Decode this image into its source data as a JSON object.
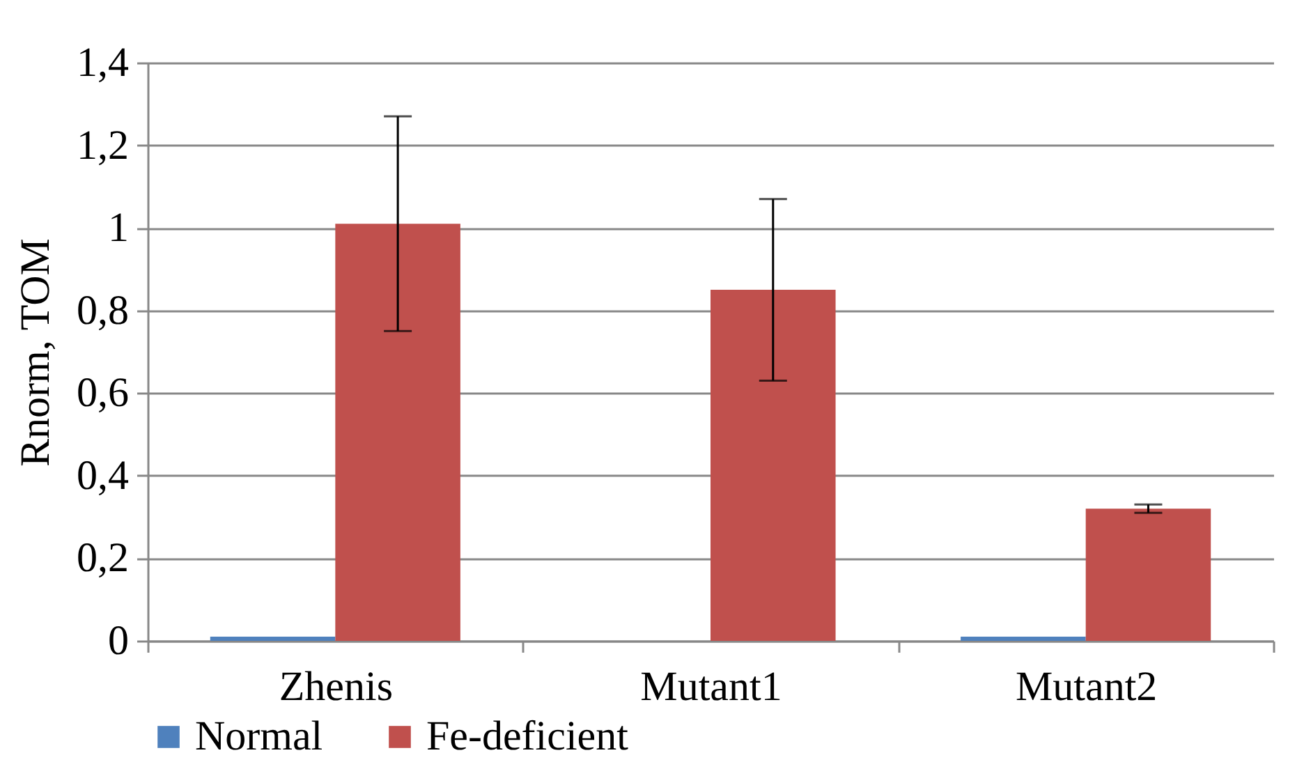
{
  "chart_data": {
    "type": "bar",
    "ylabel": "Rnorm, TOM",
    "categories": [
      "Zhenis",
      "Mutant1",
      "Mutant2"
    ],
    "series": [
      {
        "name": "Normal",
        "color": "#4f81bd",
        "values": [
          0.01,
          0,
          0.01
        ]
      },
      {
        "name": "Fe-deficient",
        "color": "#c0504d",
        "values": [
          1.01,
          0.85,
          0.32
        ],
        "errors": [
          0.26,
          0.22,
          0.01
        ]
      }
    ],
    "ylim": [
      0,
      1.4
    ],
    "yticks": [
      {
        "value": 0,
        "label": "0"
      },
      {
        "value": 0.2,
        "label": "0,2"
      },
      {
        "value": 0.4,
        "label": "0,4"
      },
      {
        "value": 0.6,
        "label": "0,6"
      },
      {
        "value": 0.8,
        "label": "0,8"
      },
      {
        "value": 1,
        "label": "1"
      },
      {
        "value": 1.2,
        "label": "1,2"
      },
      {
        "value": 1.4,
        "label": "1,4"
      }
    ],
    "grid": "y",
    "legend": "bottom"
  }
}
